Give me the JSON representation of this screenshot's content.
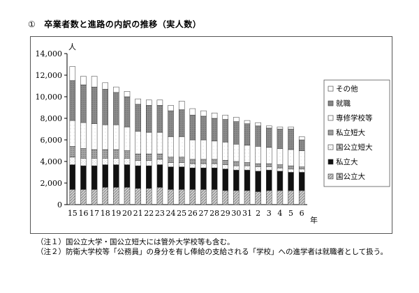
{
  "heading": {
    "number": "①",
    "title": "卒業者数と進路の内訳の推移（実人数）"
  },
  "chart_data": {
    "type": "bar",
    "stacked": true,
    "y_unit_label": "人",
    "x_unit_label": "年",
    "ylim": [
      0,
      14000
    ],
    "y_ticks": [
      0,
      2000,
      4000,
      6000,
      8000,
      10000,
      12000,
      14000
    ],
    "y_tick_labels": [
      "0",
      "2,000",
      "4,000",
      "6,000",
      "8,000",
      "10,000",
      "12,000",
      "14,000"
    ],
    "categories": [
      "15",
      "16",
      "17",
      "18",
      "19",
      "20",
      "21",
      "22",
      "23",
      "24",
      "25",
      "26",
      "27",
      "28",
      "29",
      "30",
      "31",
      "2",
      "3",
      "4",
      "5",
      "6"
    ],
    "legend_position": "right",
    "series": [
      {
        "name": "国公立大",
        "color": "#c4c4c4",
        "values": [
          1400,
          1400,
          1400,
          1600,
          1600,
          1600,
          1500,
          1500,
          1600,
          1400,
          1400,
          1400,
          1400,
          1400,
          1300,
          1300,
          1300,
          1200,
          1300,
          1300,
          1300,
          1300
        ]
      },
      {
        "name": "私立大",
        "color": "#111111",
        "values": [
          2300,
          2200,
          2200,
          2100,
          2100,
          2100,
          2100,
          2100,
          2100,
          2100,
          2100,
          2000,
          2000,
          2000,
          2000,
          1900,
          1900,
          1900,
          1900,
          1800,
          1700,
          1700
        ]
      },
      {
        "name": "国公立短大",
        "color": "#f2f2f2",
        "values": [
          700,
          700,
          700,
          600,
          600,
          600,
          500,
          500,
          500,
          400,
          400,
          400,
          400,
          400,
          400,
          400,
          400,
          400,
          300,
          300,
          300,
          300
        ]
      },
      {
        "name": "私立短大",
        "color": "#9a9a9a",
        "values": [
          1000,
          900,
          800,
          800,
          800,
          700,
          600,
          600,
          500,
          500,
          500,
          400,
          400,
          400,
          400,
          400,
          300,
          300,
          300,
          300,
          300,
          200
        ]
      },
      {
        "name": "専修学校等",
        "color": "#ffffff",
        "values": [
          2400,
          2400,
          2400,
          2300,
          2300,
          2200,
          2100,
          2000,
          2000,
          1900,
          1900,
          1800,
          1800,
          1700,
          1700,
          1600,
          1600,
          1600,
          1500,
          1500,
          1500,
          1500
        ]
      },
      {
        "name": "就職",
        "color": "#8a8a8a",
        "values": [
          3700,
          3500,
          3400,
          3300,
          3000,
          2800,
          2500,
          2500,
          2500,
          2400,
          2500,
          2300,
          2200,
          2100,
          2100,
          2100,
          2000,
          1900,
          1800,
          1800,
          1900,
          1000
        ]
      },
      {
        "name": "その他",
        "color": "#ffffff",
        "values": [
          1300,
          800,
          1000,
          600,
          500,
          500,
          500,
          500,
          500,
          500,
          800,
          600,
          500,
          500,
          400,
          400,
          300,
          300,
          200,
          200,
          200,
          300
        ]
      }
    ]
  },
  "notes": [
    "（注１）国公立大学・国公立短大には管外大学校等も含む。",
    "（注２）防衛大学校等「公務員」の身分を有し俸給の支給される「学校」への進学者は就職者として扱う。"
  ]
}
